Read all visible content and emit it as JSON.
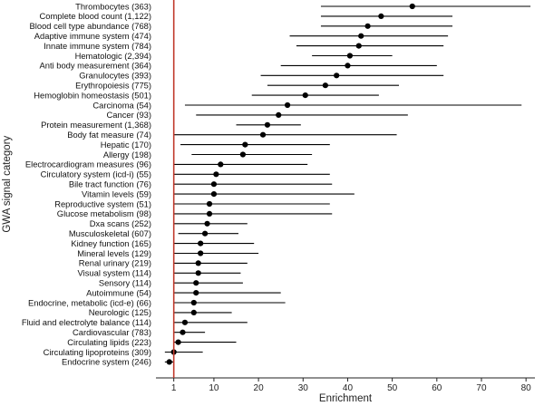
{
  "chart_data": {
    "type": "scatter",
    "subtype": "forest-plot",
    "xlabel": "Enrichment",
    "ylabel": "GWA signal category",
    "xlim": [
      -3,
      82
    ],
    "xticks": [
      1,
      10,
      20,
      30,
      40,
      50,
      60,
      70,
      80
    ],
    "reference_line": {
      "x": 1,
      "color": "#c0392b"
    },
    "point_color": "#000000",
    "line_color": "#000000",
    "grid": false,
    "categories": [
      {
        "label": "Thrombocytes (363)",
        "estimate": 54.5,
        "lower": 34,
        "upper": 81
      },
      {
        "label": "Complete blood count (1,122)",
        "estimate": 47.5,
        "lower": 34,
        "upper": 63.5
      },
      {
        "label": "Blood cell type abundance (768)",
        "estimate": 44.5,
        "lower": 34,
        "upper": 63.5
      },
      {
        "label": "Adaptive immune system (474)",
        "estimate": 43.0,
        "lower": 27,
        "upper": 62.5
      },
      {
        "label": "Innate immune system (784)",
        "estimate": 42.5,
        "lower": 28.5,
        "upper": 61.5
      },
      {
        "label": "Hematologic (2,394)",
        "estimate": 40.5,
        "lower": 32,
        "upper": 50
      },
      {
        "label": "Anti body measurement (364)",
        "estimate": 40.0,
        "lower": 25,
        "upper": 60
      },
      {
        "label": "Granulocytes (393)",
        "estimate": 37.5,
        "lower": 20.5,
        "upper": 61.5
      },
      {
        "label": "Erythropoiesis (775)",
        "estimate": 35.0,
        "lower": 22,
        "upper": 51.5
      },
      {
        "label": "Hemoglobin homeostasis (501)",
        "estimate": 30.5,
        "lower": 18.5,
        "upper": 47
      },
      {
        "label": "Carcinoma (54)",
        "estimate": 26.5,
        "lower": 3.5,
        "upper": 79
      },
      {
        "label": "Cancer (93)",
        "estimate": 24.5,
        "lower": 6,
        "upper": 53.5
      },
      {
        "label": "Protein measurement (1,368)",
        "estimate": 22.0,
        "lower": 15,
        "upper": 29.5
      },
      {
        "label": "Body fat measure (74)",
        "estimate": 21.0,
        "lower": 1,
        "upper": 51
      },
      {
        "label": "Hepatic (170)",
        "estimate": 17.0,
        "lower": 2.5,
        "upper": 36
      },
      {
        "label": "Allergy (198)",
        "estimate": 16.5,
        "lower": 5,
        "upper": 32
      },
      {
        "label": "Electrocardiogram measures (96)",
        "estimate": 11.5,
        "lower": 1,
        "upper": 31
      },
      {
        "label": "Circulatory system (icd-i) (55)",
        "estimate": 10.5,
        "lower": 1,
        "upper": 36
      },
      {
        "label": "Bile tract function (76)",
        "estimate": 10.0,
        "lower": 1,
        "upper": 36.5
      },
      {
        "label": "Vitamin levels (59)",
        "estimate": 10.0,
        "lower": 1,
        "upper": 41.5
      },
      {
        "label": "Reproductive system (51)",
        "estimate": 9.0,
        "lower": 1,
        "upper": 36
      },
      {
        "label": "Glucose metabolism (98)",
        "estimate": 9.0,
        "lower": 1,
        "upper": 36.5
      },
      {
        "label": "Dxa scans (252)",
        "estimate": 8.5,
        "lower": 1,
        "upper": 17.5
      },
      {
        "label": "Musculoskeletal (607)",
        "estimate": 8.0,
        "lower": 2,
        "upper": 15.5
      },
      {
        "label": "Kidney function (165)",
        "estimate": 7.0,
        "lower": 1,
        "upper": 19
      },
      {
        "label": "Mineral levels (129)",
        "estimate": 7.0,
        "lower": 1,
        "upper": 20
      },
      {
        "label": "Renal urinary (219)",
        "estimate": 6.5,
        "lower": 1,
        "upper": 17.5
      },
      {
        "label": "Visual system (114)",
        "estimate": 6.5,
        "lower": 1,
        "upper": 16
      },
      {
        "label": "Sensory (114)",
        "estimate": 6.0,
        "lower": 1,
        "upper": 16.5
      },
      {
        "label": "Autoimmune (54)",
        "estimate": 6.0,
        "lower": 1,
        "upper": 25
      },
      {
        "label": "Endocrine, metabolic (icd-e) (66)",
        "estimate": 5.5,
        "lower": 1,
        "upper": 26
      },
      {
        "label": "Neurologic (125)",
        "estimate": 5.5,
        "lower": 1,
        "upper": 14
      },
      {
        "label": "Fluid and electrolyte balance (114)",
        "estimate": 3.5,
        "lower": 1,
        "upper": 17.5
      },
      {
        "label": "Cardiovascular (783)",
        "estimate": 3.0,
        "lower": 1,
        "upper": 8
      },
      {
        "label": "Circulating lipids (223)",
        "estimate": 2.0,
        "lower": 1,
        "upper": 15
      },
      {
        "label": "Circulating lipoproteins (309)",
        "estimate": 1.0,
        "lower": -1,
        "upper": 7.5
      },
      {
        "label": "Endocrine system (246)",
        "estimate": 0.0,
        "lower": -1,
        "upper": 1
      }
    ]
  }
}
